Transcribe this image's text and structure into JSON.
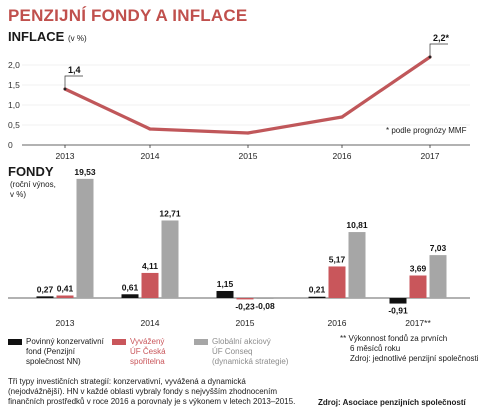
{
  "title": "PENZIJNÍ FONDY A INFLACE",
  "chart_data": [
    {
      "type": "line",
      "title": "INFLACE",
      "subtitle": "(v %)",
      "categories": [
        "2013",
        "2014",
        "2015",
        "2016",
        "2017"
      ],
      "series": [
        {
          "values": [
            1.4,
            0.4,
            0.3,
            0.7,
            2.2
          ]
        }
      ],
      "data_labels": [
        "1,4",
        "",
        "",
        "",
        "2,2*"
      ],
      "yticks": [
        "0",
        "0,5",
        "1,0",
        "1,5",
        "2,0"
      ],
      "ylim": [
        0,
        2.5
      ],
      "grid": true,
      "color": "#c0575a",
      "footnote": "* podle prognózy MMF"
    },
    {
      "type": "bar",
      "title": "FONDY",
      "subtitle_lines": [
        "(roční výnos,",
        "v %)"
      ],
      "categories": [
        "2013",
        "2014",
        "2015",
        "2016",
        "2017**"
      ],
      "series": [
        {
          "name_lines": [
            "Povinný konzervativní",
            "fond (Penzijní",
            "společnost NN)"
          ],
          "color": "#111111",
          "values": [
            0.27,
            0.61,
            1.15,
            0.21,
            -0.91
          ],
          "labels": [
            "0,27",
            "0,61",
            "1,15",
            "0,21",
            "-0,91"
          ]
        },
        {
          "name_lines": [
            "Vyvážený",
            "ÚF Česká",
            "spořitelna"
          ],
          "color": "#c9565b",
          "values": [
            0.41,
            4.11,
            -0.23,
            5.17,
            3.69
          ],
          "labels": [
            "0,41",
            "4,11",
            "-0,23",
            "5,17",
            "3,69"
          ]
        },
        {
          "name_lines": [
            "Globální akciový",
            "ÚF Conseq",
            "(dynamická strategie)"
          ],
          "color": "#a6a6a6",
          "values": [
            19.53,
            12.71,
            -0.08,
            10.81,
            7.03
          ],
          "labels": [
            "19,53",
            "12,71",
            "-0,08",
            "10,81",
            "7,03"
          ]
        }
      ]
    }
  ],
  "notes_right": [
    "** Výkonnost fondů za prvních",
    "6 měsíců roku",
    "Zdroj: jednotlivé penzijní společnosti"
  ],
  "description_lines": [
    "Tři typy investičních strategií: konzervativní, vyvážená a dynamická",
    "(nejodvážnější). HN v každé oblasti vybraly fondy s nejvyšším zhodnocením",
    "finančních prostředků v roce 2016 a porovnaly je s výkonem v letech 2013–2015."
  ],
  "source": "Zdroj: Asociace penzijních společností"
}
